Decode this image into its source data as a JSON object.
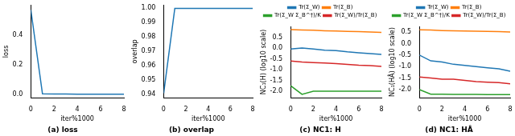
{
  "chart_data": [
    {
      "type": "line",
      "title": "(a) loss",
      "x_label": "iter%1000",
      "y_label": "loss",
      "x": [
        0,
        1,
        2,
        3,
        4,
        5,
        6,
        7,
        8
      ],
      "values": [
        0.57,
        0.005,
        0.004,
        0.004,
        0.003,
        0.003,
        0.003,
        0.003,
        0.003
      ],
      "color": "#1f77b4",
      "xlim": [
        0,
        8
      ],
      "xticks": [
        0,
        2,
        4,
        6,
        8
      ],
      "ylim": [
        -0.02,
        0.6
      ],
      "yticks": [
        {
          "value": 0,
          "label": "0.0"
        },
        0.2,
        0.4
      ],
      "grid": false
    },
    {
      "type": "line",
      "title": "(b) overlap",
      "x_label": "iter%1000",
      "y_label": "overlap",
      "x": [
        0,
        1,
        2,
        3,
        4,
        5,
        6,
        7,
        8
      ],
      "values": [
        0.941,
        1,
        1,
        1,
        1,
        1,
        1,
        1,
        1
      ],
      "color": "#1f77b4",
      "xlim": [
        0,
        8
      ],
      "xticks": [
        0,
        2,
        4,
        6,
        8
      ],
      "ylim": [
        0.938,
        1.002
      ],
      "yticks": [
        0.94,
        0.95,
        0.96,
        0.97,
        0.98,
        0.99,
        {
          "value": 1,
          "label": "1.00"
        }
      ],
      "grid": false
    },
    {
      "type": "line",
      "title": "(c) NC1: H",
      "x_label": "iter%1000",
      "y_label": "NC₁(H) (log10 scale)",
      "x": [
        0,
        1,
        2,
        3,
        4,
        5,
        6,
        7,
        8
      ],
      "series": [
        {
          "name": "Tr(Σ_W)",
          "color": "#1f77b4",
          "values": [
            -0.05,
            0.0,
            -0.05,
            -0.1,
            -0.12,
            -0.18,
            -0.22,
            -0.26,
            -0.3
          ]
        },
        {
          "name": "Tr(Σ_B)",
          "color": "#ff7f0e",
          "values": [
            0.85,
            0.83,
            0.82,
            0.8,
            0.79,
            0.77,
            0.76,
            0.74,
            0.72
          ]
        },
        {
          "name": "Tr(Σ_W Σ_B^†)/K",
          "color": "#2ca02c",
          "values": [
            -1.75,
            -2.15,
            -2.0,
            -2.0,
            -2.0,
            -2.0,
            -2.0,
            -2.0,
            -2.0
          ]
        },
        {
          "name": "Tr(Σ_W)/Tr(Σ_B)",
          "color": "#d62728",
          "values": [
            -0.6,
            -0.65,
            -0.68,
            -0.7,
            -0.72,
            -0.76,
            -0.8,
            -0.82,
            -0.85
          ]
        }
      ],
      "xlim": [
        0,
        8
      ],
      "xticks": [
        0,
        2,
        4,
        6,
        8
      ],
      "ylim": [
        -2.3,
        1.0
      ],
      "yticks": [
        {
          "value": -2,
          "label": "-2.0"
        },
        -1.5,
        {
          "value": -1,
          "label": "-1.0"
        },
        -0.5,
        {
          "value": 0,
          "label": "0.0"
        },
        0.5
      ],
      "legend": "top",
      "grid": false
    },
    {
      "type": "line",
      "title": "(d) NC1: HÂ",
      "x_label": "iter%1000",
      "y_label": "NC₁(HÂ) (log10 scale)",
      "x": [
        0,
        1,
        2,
        3,
        4,
        5,
        6,
        7,
        8
      ],
      "series": [
        {
          "name": "Tr(Σ_W)",
          "color": "#1f77b4",
          "values": [
            -0.5,
            -0.75,
            -0.8,
            -0.9,
            -0.95,
            -1.0,
            -1.05,
            -1.1,
            -1.2
          ]
        },
        {
          "name": "Tr(Σ_B)",
          "color": "#ff7f0e",
          "values": [
            0.6,
            0.59,
            0.57,
            0.56,
            0.55,
            0.54,
            0.53,
            0.52,
            0.51
          ]
        },
        {
          "name": "Tr(Σ_W Σ_B^†)/K",
          "color": "#2ca02c",
          "values": [
            -2.0,
            -2.2,
            -2.2,
            -2.21,
            -2.21,
            -2.21,
            -2.22,
            -2.22,
            -2.22
          ]
        },
        {
          "name": "Tr(Σ_W)/Tr(Σ_B)",
          "color": "#d62728",
          "values": [
            -1.45,
            -1.5,
            -1.55,
            -1.55,
            -1.6,
            -1.65,
            -1.68,
            -1.7,
            -1.75
          ]
        }
      ],
      "xlim": [
        0,
        8
      ],
      "xticks": [
        0,
        2,
        4,
        6,
        8
      ],
      "ylim": [
        -2.35,
        0.75
      ],
      "yticks": [
        {
          "value": -2,
          "label": "-2.0"
        },
        -1.5,
        {
          "value": -1,
          "label": "-1.0"
        },
        -0.5,
        {
          "value": 0,
          "label": "0.0"
        },
        0.5
      ],
      "legend": "top",
      "grid": false
    }
  ]
}
